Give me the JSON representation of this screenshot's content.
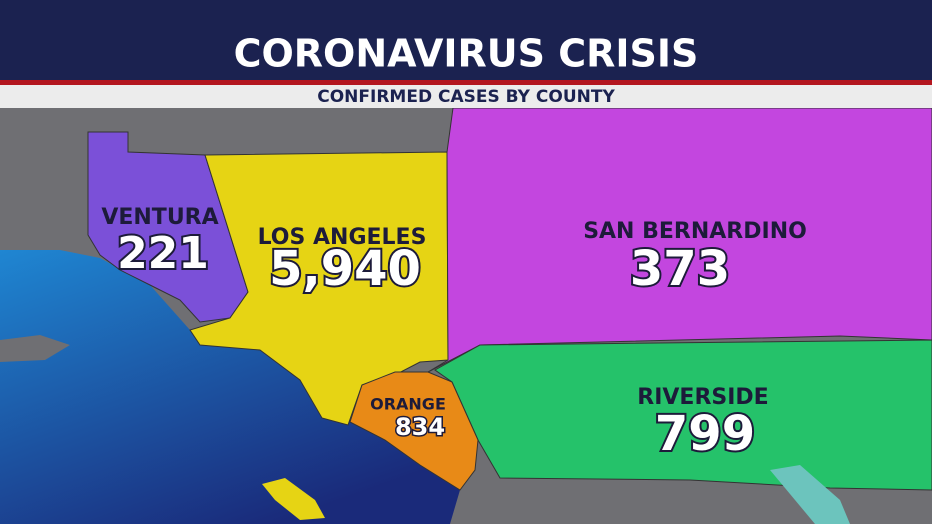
{
  "header": {
    "title": "CORONAVIRUS CRISIS",
    "subtitle": "CONFIRMED CASES BY COUNTY"
  },
  "counties": [
    {
      "name": "VENTURA",
      "cases": "221"
    },
    {
      "name": "LOS ANGELES",
      "cases": "5,940"
    },
    {
      "name": "SAN BERNARDINO",
      "cases": "373"
    },
    {
      "name": "ORANGE",
      "cases": "834"
    },
    {
      "name": "RIVERSIDE",
      "cases": "799"
    }
  ]
}
